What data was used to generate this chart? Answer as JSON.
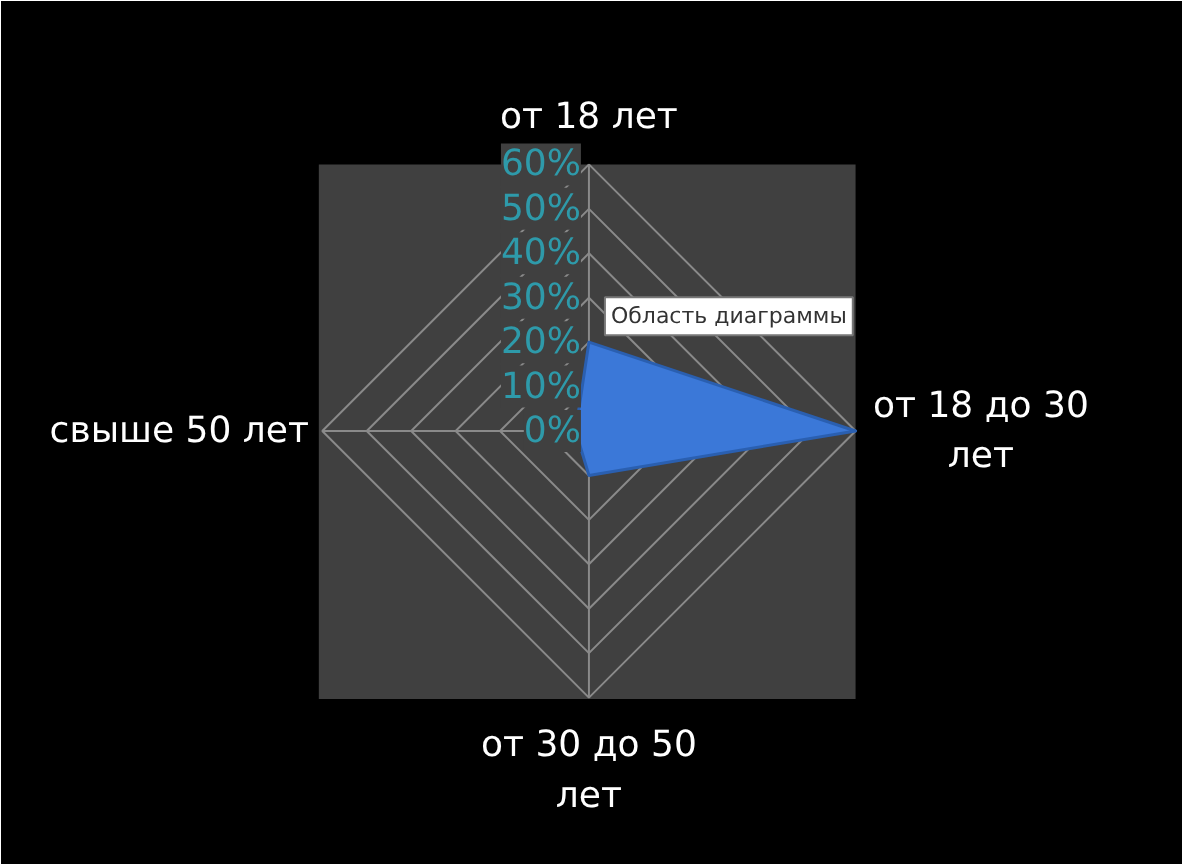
{
  "chart_data": {
    "type": "radar",
    "categories": [
      "от 18 лет",
      "от 18 до 30 лет",
      "от 30 до 50 лет",
      "свыше 50 лет"
    ],
    "series": [
      {
        "color": "#3b78d8",
        "values": [
          20,
          60,
          10,
          3
        ]
      }
    ],
    "ylim": [
      0,
      60
    ],
    "yticks": [
      {
        "value": 0,
        "label": "0%"
      },
      {
        "value": 10,
        "label": "10%"
      },
      {
        "value": 20,
        "label": "20%"
      },
      {
        "value": 30,
        "label": "30%"
      },
      {
        "value": 40,
        "label": "40%"
      },
      {
        "value": 50,
        "label": "50%"
      },
      {
        "value": 60,
        "label": "60%"
      }
    ],
    "grid": true,
    "annotations": [
      "Область диаграммы"
    ]
  }
}
